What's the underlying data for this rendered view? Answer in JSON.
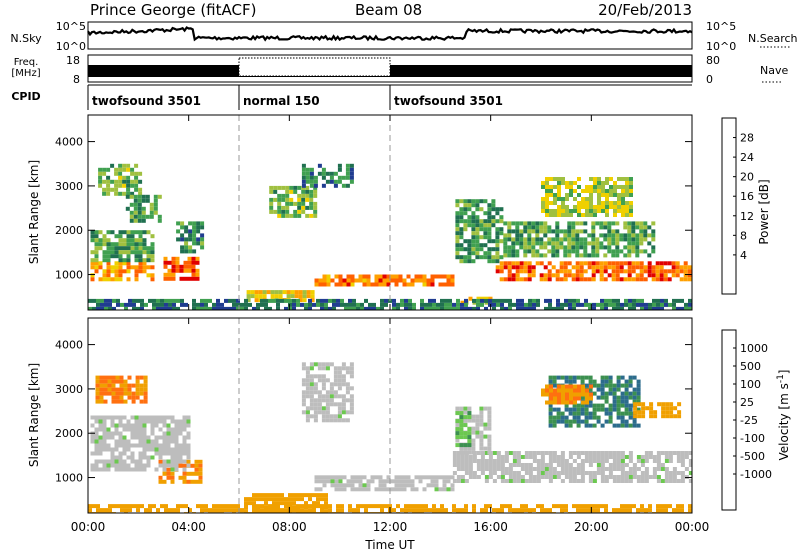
{
  "header": {
    "station": "Prince George (fitACF)",
    "beam": "Beam 08",
    "date": "20/Feb/2013"
  },
  "status_panels": {
    "nsky": {
      "label": "N.Sky",
      "left_ticks": [
        "10^5",
        "10^0"
      ],
      "right_ticks": [
        "10^5",
        "10^0"
      ],
      "right_label": "N.Search"
    },
    "freq": {
      "label_line1": "Freq.",
      "label_line2": "[MHz]",
      "left_ticks": [
        "18",
        "8"
      ],
      "right_ticks": [
        "80",
        "0"
      ],
      "right_label": "Nave"
    },
    "cpid": {
      "label": "CPID",
      "segments": [
        {
          "name": "twofsound 3501",
          "start_hour": 0,
          "end_hour": 6
        },
        {
          "name": "normal 150",
          "start_hour": 6,
          "end_hour": 12
        },
        {
          "name": "twofsound 3501",
          "start_hour": 12,
          "end_hour": 24
        }
      ]
    }
  },
  "colorbars": {
    "power": {
      "label": "Power [dB]",
      "ticks": [
        "28",
        "24",
        "20",
        "16",
        "12",
        "8",
        "4"
      ],
      "colors": [
        "#e00000",
        "#ff6000",
        "#ffa000",
        "#f0d000",
        "#a0c040",
        "#40a050",
        "#207050",
        "#203c90",
        "#1010ff"
      ]
    },
    "velocity": {
      "label": "Velocity [m s",
      "label_sup": "-1",
      "label_end": "]",
      "ticks": [
        "1000",
        "500",
        "100",
        "25",
        "-25",
        "-100",
        "-500",
        "-1000"
      ],
      "colors": [
        "#1c36b0",
        "#2c6c8c",
        "#3c9050",
        "#6cc850",
        "#bdbdbd",
        "#bdbdbd",
        "#f0a000",
        "#ff7010",
        "#ff3010",
        "#e00000"
      ]
    }
  },
  "chart_data": {
    "type": "heatmap",
    "xlabel": "Time UT",
    "ylabel": "Slant Range [km]",
    "x_ticks": [
      "00:00",
      "04:00",
      "08:00",
      "12:00",
      "16:00",
      "20:00",
      "00:00"
    ],
    "x_tick_hours": [
      0,
      4,
      8,
      12,
      16,
      20,
      24
    ],
    "xlim_hours": [
      0,
      24
    ],
    "y_ticks": [
      1000,
      2000,
      3000,
      4000
    ],
    "ylim": [
      200,
      4600
    ],
    "mode_change_hours": [
      6,
      12
    ],
    "power_regions": [
      {
        "t0": 0.1,
        "t1": 2.6,
        "r0": 900,
        "r1": 1300,
        "value": 22
      },
      {
        "t0": 0.1,
        "t1": 2.5,
        "r0": 1300,
        "r1": 2000,
        "value": 10
      },
      {
        "t0": 0.4,
        "t1": 2.0,
        "r0": 2800,
        "r1": 3500,
        "value": 12
      },
      {
        "t0": 1.5,
        "t1": 2.8,
        "r0": 2200,
        "r1": 2800,
        "value": 9
      },
      {
        "t0": 3.0,
        "t1": 4.4,
        "r0": 900,
        "r1": 1400,
        "value": 26
      },
      {
        "t0": 3.5,
        "t1": 4.5,
        "r0": 1500,
        "r1": 2200,
        "value": 8
      },
      {
        "t0": 6.3,
        "t1": 9.0,
        "r0": 450,
        "r1": 650,
        "value": 18
      },
      {
        "t0": 7.2,
        "t1": 9.1,
        "r0": 2300,
        "r1": 3000,
        "value": 12
      },
      {
        "t0": 8.5,
        "t1": 10.5,
        "r0": 3000,
        "r1": 3500,
        "value": 7
      },
      {
        "t0": 9.0,
        "t1": 14.5,
        "r0": 750,
        "r1": 1000,
        "value": 24
      },
      {
        "t0": 14.8,
        "t1": 16.0,
        "r0": 350,
        "r1": 500,
        "value": 18
      },
      {
        "t0": 14.6,
        "t1": 16.5,
        "r0": 1300,
        "r1": 2700,
        "value": 9
      },
      {
        "t0": 16.2,
        "t1": 24.0,
        "r0": 900,
        "r1": 1300,
        "value": 25
      },
      {
        "t0": 16.5,
        "t1": 22.5,
        "r0": 1400,
        "r1": 2200,
        "value": 11
      },
      {
        "t0": 18.0,
        "t1": 21.5,
        "r0": 2300,
        "r1": 3200,
        "value": 15
      },
      {
        "t0": 0.0,
        "t1": 24.0,
        "r0": 200,
        "r1": 450,
        "value": 6
      }
    ],
    "velocity_regions": [
      {
        "t0": 0.3,
        "t1": 2.3,
        "r0": 2700,
        "r1": 3300,
        "value": -300
      },
      {
        "t0": 2.8,
        "t1": 4.4,
        "r0": 900,
        "r1": 1400,
        "value": -300
      },
      {
        "t0": 0.1,
        "t1": 4.0,
        "r0": 1200,
        "r1": 2400,
        "value": 0
      },
      {
        "t0": 6.2,
        "t1": 9.5,
        "r0": 250,
        "r1": 650,
        "value": -150
      },
      {
        "t0": 8.5,
        "t1": 10.5,
        "r0": 2300,
        "r1": 3600,
        "value": 0
      },
      {
        "t0": 9.0,
        "t1": 14.5,
        "r0": 700,
        "r1": 1050,
        "value": 0
      },
      {
        "t0": 14.5,
        "t1": 24.0,
        "r0": 900,
        "r1": 1600,
        "value": 0
      },
      {
        "t0": 14.6,
        "t1": 16.0,
        "r0": 1600,
        "r1": 2600,
        "value": 0
      },
      {
        "t0": 14.6,
        "t1": 15.2,
        "r0": 1700,
        "r1": 2500,
        "value": 60
      },
      {
        "t0": 18.3,
        "t1": 21.8,
        "r0": 2200,
        "r1": 3300,
        "value": 300
      },
      {
        "t0": 18.0,
        "t1": 20.0,
        "r0": 2700,
        "r1": 3100,
        "value": -300
      },
      {
        "t0": 21.5,
        "t1": 23.5,
        "r0": 2400,
        "r1": 2700,
        "value": -200
      },
      {
        "t0": 0.0,
        "t1": 24.0,
        "r0": 200,
        "r1": 400,
        "value": -150
      }
    ]
  }
}
